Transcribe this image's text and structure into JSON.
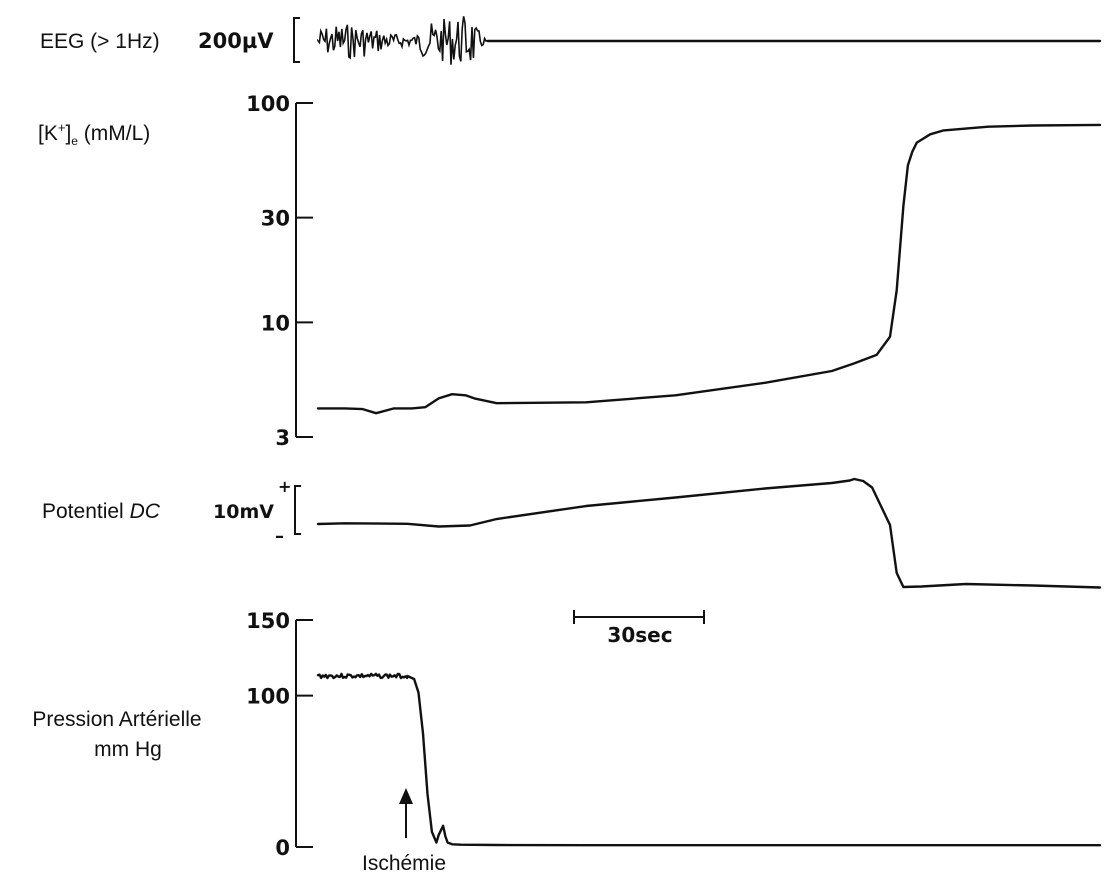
{
  "chart_data": [
    {
      "type": "line",
      "label": "EEG (> 1Hz)",
      "scale_bar": "200µV",
      "note": "high-amplitude activity until ischemia + ~30 s, then isoelectric",
      "series": [
        {
          "x": [
            0,
            38
          ],
          "values": [
            "active",
            "active"
          ]
        },
        {
          "x": [
            38,
            175
          ],
          "values": [
            "flat",
            "flat"
          ]
        }
      ],
      "xlim": [
        0,
        175
      ]
    },
    {
      "type": "line",
      "label": "[K+]e (mM/L)",
      "yscale": "log",
      "ytick_labels": [
        "100",
        "30",
        "10",
        "3"
      ],
      "ylim": [
        3,
        100
      ],
      "series": [
        {
          "x": [
            0,
            6,
            10,
            13,
            17,
            21,
            24,
            27,
            30,
            33,
            35,
            40,
            60,
            80,
            100,
            115,
            120,
            125,
            128,
            129.5,
            131,
            132,
            133,
            134,
            137,
            140,
            150,
            160,
            175
          ],
          "values": [
            4.05,
            4.05,
            4.02,
            3.85,
            4.05,
            4.05,
            4.1,
            4.5,
            4.7,
            4.65,
            4.5,
            4.28,
            4.32,
            4.65,
            5.3,
            6.0,
            6.5,
            7.1,
            8.6,
            14,
            34,
            52,
            60,
            66,
            72,
            75,
            78,
            79,
            79.5
          ]
        }
      ],
      "xlim": [
        0,
        175
      ]
    },
    {
      "type": "line",
      "label": "Potentiel DC",
      "scale_bar": "10mV",
      "scale_signs": {
        "plus": "+",
        "minus": "–"
      },
      "series": [
        {
          "x": [
            0,
            6,
            20,
            27,
            34,
            40,
            60,
            80,
            100,
            115,
            119,
            120,
            122,
            124,
            128,
            129.5,
            131,
            135,
            145,
            160,
            175
          ],
          "values": [
            0.2,
            0.35,
            0.25,
            -0.3,
            -0.1,
            1.2,
            3.8,
            5.5,
            7.3,
            8.4,
            8.9,
            9.2,
            8.8,
            7.5,
            0,
            -9.6,
            -12.4,
            -12.3,
            -11.8,
            -12.1,
            -12.5
          ]
        }
      ],
      "ylim": [
        -14,
        11
      ],
      "xlim": [
        0,
        175
      ]
    },
    {
      "type": "line",
      "label": "Pression Artérielle mm Hg",
      "ytick_labels": [
        "150",
        "100",
        "0"
      ],
      "ylim": [
        0,
        150
      ],
      "annotation": "Ischémie",
      "annotation_x": 20,
      "time_scale": "30sec",
      "series": [
        {
          "x": [
            0,
            20,
            21.5,
            22.5,
            23.5,
            24.5,
            25.5,
            26.5,
            27,
            28,
            28.5,
            29,
            30,
            32,
            40,
            60,
            100,
            140,
            175
          ],
          "values": [
            113,
            113,
            111,
            102,
            75,
            35,
            10,
            3,
            8,
            14,
            7,
            3,
            1.8,
            1.5,
            1.3,
            1.2,
            1.2,
            1.2,
            1.2
          ]
        }
      ],
      "xlim": [
        0,
        175
      ]
    }
  ]
}
